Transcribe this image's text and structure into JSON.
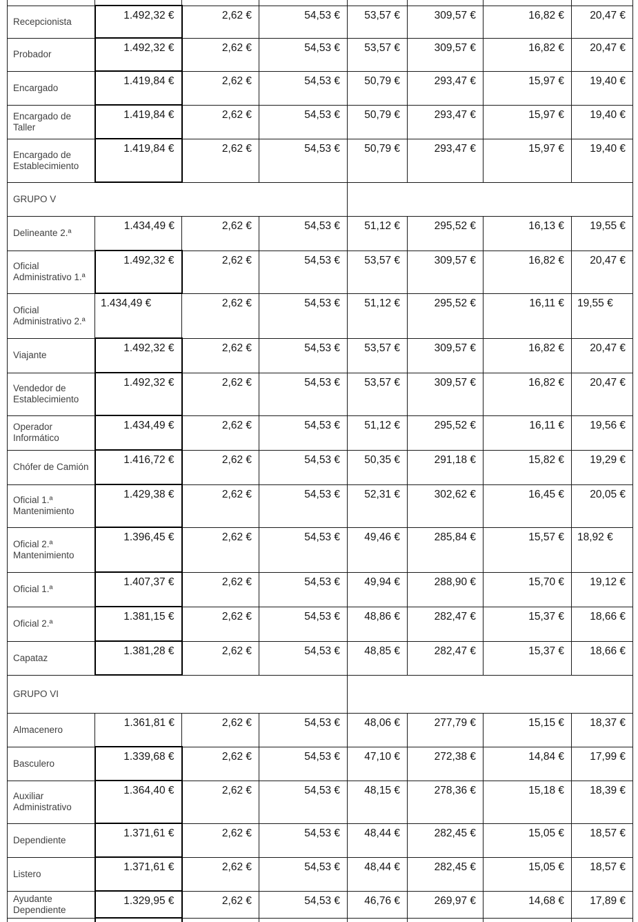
{
  "document": {
    "kind": "salary-table-page",
    "currency": "€",
    "colors": {
      "background": "#ffffff",
      "grid_border": "#1a1a1a",
      "emphasis_border": "#000000",
      "value_text": "#161616",
      "label_text": "#3f3f3f"
    }
  },
  "table": {
    "rows": [
      {
        "kind": "data",
        "label": "Recepcionista",
        "boxed": true,
        "values": [
          "1.492,32 €",
          "2,62 €",
          "54,53 €",
          "53,57 €",
          "309,57 €",
          "16,82 €",
          "20,47 €"
        ]
      },
      {
        "kind": "data",
        "label": "Probador",
        "boxed": true,
        "values": [
          "1.492,32 €",
          "2,62 €",
          "54,53 €",
          "53,57 €",
          "309,57 €",
          "16,82 €",
          "20,47 €"
        ]
      },
      {
        "kind": "data",
        "label": "Encargado",
        "boxed": true,
        "values": [
          "1.419,84 €",
          "2,62 €",
          "54,53 €",
          "50,79 €",
          "293,47 €",
          "15,97 €",
          "19,40 €"
        ]
      },
      {
        "kind": "data",
        "label": "Encargado de Taller",
        "boxed": true,
        "values": [
          "1.419,84 €",
          "2,62 €",
          "54,53 €",
          "50,79 €",
          "293,47 €",
          "15,97 €",
          "19,40 €"
        ]
      },
      {
        "kind": "data",
        "label": "Encargado de Establecimiento",
        "boxed": true,
        "values": [
          "1.419,84 €",
          "2,62 €",
          "54,53 €",
          "50,79 €",
          "293,47 €",
          "15,97 €",
          "19,40 €"
        ]
      },
      {
        "kind": "group",
        "label": "GRUPO V"
      },
      {
        "kind": "data",
        "label": "Delineante 2.ª",
        "boxed": false,
        "values": [
          "1.434,49 €",
          "2,62 €",
          "54,53 €",
          "51,12 €",
          "295,52 €",
          "16,13 €",
          "19,55 €"
        ]
      },
      {
        "kind": "data",
        "label": "Oficial Administrativo 1.ª",
        "boxed": true,
        "values": [
          "1.492,32 €",
          "2,62 €",
          "54,53 €",
          "53,57 €",
          "309,57 €",
          "16,82 €",
          "20,47 €"
        ]
      },
      {
        "kind": "data",
        "label": "Oficial Administrativo 2.ª",
        "boxed": false,
        "left_values": [
          0,
          6
        ],
        "values": [
          "1.434,49 €",
          "2,62 €",
          "54,53 €",
          "51,12 €",
          "295,52 €",
          "16,11 €",
          "19,55 €"
        ]
      },
      {
        "kind": "data",
        "label": "Viajante",
        "boxed": true,
        "values": [
          "1.492,32 €",
          "2,62 €",
          "54,53 €",
          "53,57 €",
          "309,57 €",
          "16,82 €",
          "20,47 €"
        ]
      },
      {
        "kind": "data",
        "label": "Vendedor de Establecimiento",
        "boxed": true,
        "values": [
          "1.492,32 €",
          "2,62 €",
          "54,53 €",
          "53,57 €",
          "309,57 €",
          "16,82 €",
          "20,47 €"
        ]
      },
      {
        "kind": "data",
        "label": "Operador Informático",
        "boxed": true,
        "values": [
          "1.434,49 €",
          "2,62 €",
          "54,53 €",
          "51,12 €",
          "295,52 €",
          "16,11 €",
          "19,56 €"
        ]
      },
      {
        "kind": "data",
        "label": "Chófer de Camión",
        "boxed": true,
        "values": [
          "1.416,72 €",
          "2,62 €",
          "54,53 €",
          "50,35 €",
          "291,18 €",
          "15,82 €",
          "19,29 €"
        ]
      },
      {
        "kind": "data",
        "label": "Oficial 1.ª Mantenimiento",
        "boxed": true,
        "values": [
          "1.429,38 €",
          "2,62 €",
          "54,53 €",
          "52,31 €",
          "302,62 €",
          "16,45 €",
          "20,05 €"
        ]
      },
      {
        "kind": "data",
        "label": "Oficial 2.ª Mantenimiento",
        "boxed": true,
        "left_values": [
          6
        ],
        "values": [
          "1.396,45 €",
          "2,62 €",
          "54,53 €",
          "49,46 €",
          "285,84 €",
          "15,57 €",
          "18,92 €"
        ]
      },
      {
        "kind": "data",
        "label": "Oficial 1.ª",
        "boxed": true,
        "values": [
          "1.407,37 €",
          "2,62 €",
          "54,53 €",
          "49,94 €",
          "288,90 €",
          "15,70 €",
          "19,12 €"
        ]
      },
      {
        "kind": "data",
        "label": "Oficial 2.ª",
        "boxed": true,
        "values": [
          "1.381,15 €",
          "2,62 €",
          "54,53 €",
          "48,86 €",
          "282,47 €",
          "15,37 €",
          "18,66 €"
        ]
      },
      {
        "kind": "data",
        "label": "Capataz",
        "boxed": true,
        "values": [
          "1.381,28 €",
          "2,62 €",
          "54,53 €",
          "48,85 €",
          "282,47 €",
          "15,37 €",
          "18,66 €"
        ]
      },
      {
        "kind": "group",
        "label": "GRUPO VI"
      },
      {
        "kind": "data",
        "label": "Almacenero",
        "boxed": false,
        "values": [
          "1.361,81 €",
          "2,62 €",
          "54,53 €",
          "48,06 €",
          "277,79 €",
          "15,15 €",
          "18,37 €"
        ]
      },
      {
        "kind": "data",
        "label": "Basculero",
        "boxed": true,
        "values": [
          "1.339,68 €",
          "2,62 €",
          "54,53 €",
          "47,10 €",
          "272,38 €",
          "14,84 €",
          "17,99 €"
        ]
      },
      {
        "kind": "data",
        "label": "Auxiliar Administrativo",
        "boxed": true,
        "values": [
          "1.364,40 €",
          "2,62 €",
          "54,53 €",
          "48,15 €",
          "278,36 €",
          "15,18 €",
          "18,39 €"
        ]
      },
      {
        "kind": "data",
        "label": "Dependiente",
        "boxed": true,
        "values": [
          "1.371,61 €",
          "2,62 €",
          "54,53 €",
          "48,44 €",
          "282,45 €",
          "15,05 €",
          "18,57 €"
        ]
      },
      {
        "kind": "data",
        "label": "Listero",
        "boxed": true,
        "values": [
          "1.371,61 €",
          "2,62 €",
          "54,53 €",
          "48,44 €",
          "282,45 €",
          "15,05 €",
          "18,57 €"
        ]
      },
      {
        "kind": "data",
        "label": "Ayudante Dependiente",
        "boxed": true,
        "values": [
          "1.329,95 €",
          "2,62 €",
          "54,53 €",
          "46,76 €",
          "269,97 €",
          "14,68 €",
          "17,89 €"
        ]
      }
    ]
  }
}
